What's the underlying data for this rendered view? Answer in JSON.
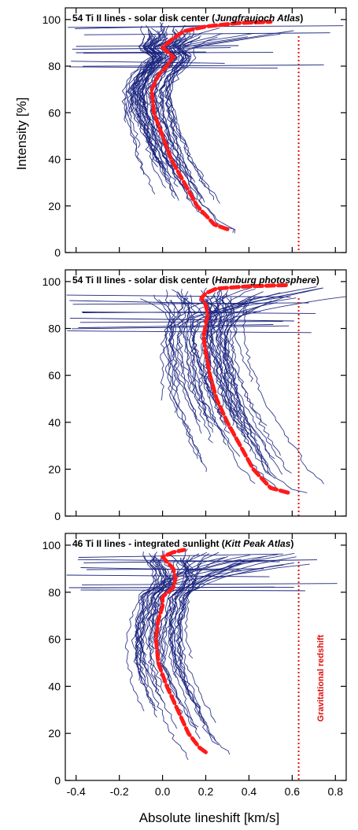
{
  "colors": {
    "lines": "#1a237e",
    "mean": "#ff1a1a",
    "redshift": "#e01010",
    "frame": "#000000"
  },
  "xlabel": "Absolute lineshift  [km/s]",
  "ylabel": "Intensity  [%]",
  "redshift_label": "Gravitational redshift",
  "chart_data": [
    {
      "type": "line",
      "title": "54 Ti II lines - solar disk center",
      "source": "Jungfraujoch Atlas",
      "xlim": [
        -0.45,
        0.85
      ],
      "ylim": [
        0,
        105
      ],
      "yticks": [
        "0",
        "20",
        "40",
        "60",
        "80",
        "100"
      ],
      "gravitational_redshift": 0.63,
      "mean_bisector": {
        "x": [
          0.3,
          0.24,
          0.16,
          0.1,
          0.04,
          0.0,
          -0.04,
          -0.05,
          -0.02,
          0.02,
          0.05,
          0.0,
          0.05,
          0.1,
          0.2,
          0.35,
          0.5
        ],
        "y": [
          10,
          12,
          20,
          30,
          40,
          50,
          60,
          70,
          76,
          80,
          84,
          88,
          92,
          95,
          97,
          98.5,
          99
        ]
      },
      "line_count": 54
    },
    {
      "type": "line",
      "title": "54 Ti II lines - solar disk center",
      "source": "Hamburg photosphere",
      "xlim": [
        -0.45,
        0.85
      ],
      "ylim": [
        0,
        105
      ],
      "yticks": [
        "0",
        "20",
        "40",
        "60",
        "80",
        "100"
      ],
      "gravitational_redshift": 0.63,
      "mean_bisector": {
        "x": [
          0.58,
          0.5,
          0.42,
          0.36,
          0.3,
          0.25,
          0.22,
          0.2,
          0.19,
          0.2,
          0.21,
          0.2,
          0.18,
          0.2,
          0.25,
          0.4,
          0.58
        ],
        "y": [
          10,
          12,
          20,
          30,
          40,
          50,
          60,
          70,
          76,
          82,
          86,
          90,
          93,
          95,
          97,
          98,
          98.5
        ]
      },
      "line_count": 54
    },
    {
      "type": "line",
      "title": "46 Ti II lines - integrated sunlight",
      "source": "Kitt Peak Atlas",
      "xlim": [
        -0.45,
        0.85
      ],
      "ylim": [
        0,
        105
      ],
      "yticks": [
        "0",
        "20",
        "40",
        "60",
        "80",
        "100"
      ],
      "xticks": [
        "-0.4",
        "-0.2",
        "0.0",
        "0.2",
        "0.4",
        "0.6",
        "0.8"
      ],
      "gravitational_redshift": 0.63,
      "mean_bisector": {
        "x": [
          0.2,
          0.17,
          0.12,
          0.07,
          0.02,
          -0.02,
          -0.03,
          -0.02,
          0.0,
          0.0,
          0.05,
          0.06,
          0.05,
          0.02,
          0.0,
          0.05,
          0.1
        ],
        "y": [
          12,
          14,
          20,
          30,
          40,
          50,
          60,
          68,
          74,
          78,
          82,
          86,
          90,
          93,
          95,
          97,
          98
        ]
      },
      "line_count": 46
    }
  ]
}
